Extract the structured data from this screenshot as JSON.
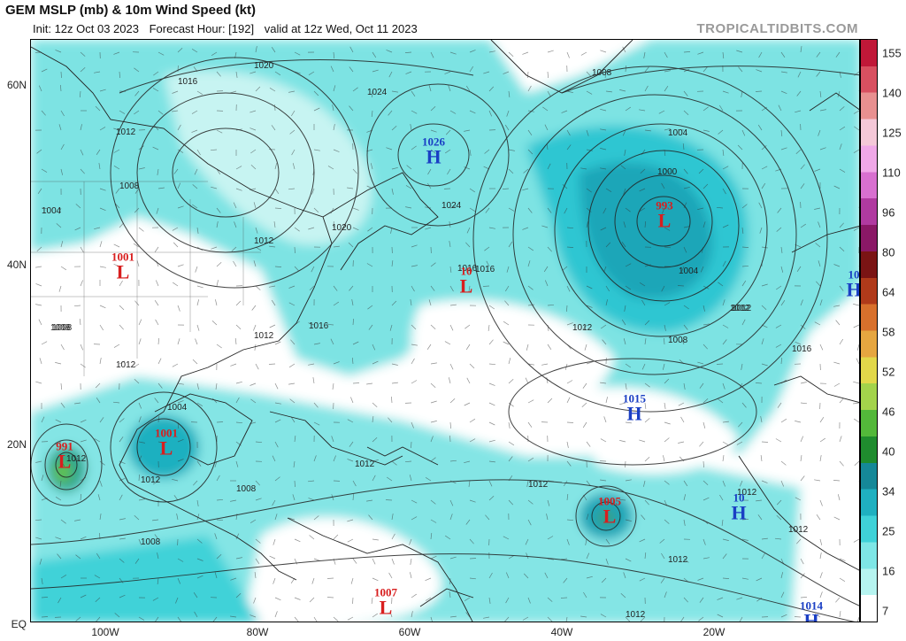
{
  "header": {
    "title": "GEM MSLP (mb) & 10m Wind Speed (kt)",
    "init": "Init: 12z Oct 03 2023",
    "forecast_hour": "Forecast Hour: [192]",
    "valid": "valid at 12z Wed, Oct 11 2023",
    "brand": "TROPICALTIDBITS.COM"
  },
  "axes": {
    "lat_labels": [
      "60N",
      "40N",
      "20N",
      "EQ"
    ],
    "lon_labels": [
      "100W",
      "80W",
      "60W",
      "40W",
      "20W"
    ]
  },
  "colorbar": {
    "labels": [
      "155",
      "140",
      "125",
      "110",
      "96",
      "80",
      "64",
      "58",
      "52",
      "46",
      "40",
      "34",
      "25",
      "16",
      "7"
    ],
    "colors": [
      "#ffffff",
      "#b6f4f0",
      "#7ee6e6",
      "#3fd2d8",
      "#1fb0c0",
      "#158898",
      "#1f8c2e",
      "#53b83a",
      "#a3d34b",
      "#e2d84a",
      "#e6a640",
      "#d8702c",
      "#b03a1a",
      "#7a1414",
      "#8a1866",
      "#b03aa0",
      "#d870d0",
      "#f0a8e8",
      "#f4c8d8",
      "#e89090",
      "#d85060",
      "#c01838"
    ]
  },
  "systems": [
    {
      "kind": "low",
      "pressure": "991",
      "letter": "L"
    },
    {
      "kind": "low",
      "pressure": "1001",
      "letter": "L"
    },
    {
      "kind": "low",
      "pressure": "1001",
      "letter": "L"
    },
    {
      "kind": "low",
      "pressure": "1007",
      "letter": "L"
    },
    {
      "kind": "low",
      "pressure": "10",
      "letter": "L"
    },
    {
      "kind": "low",
      "pressure": "993",
      "letter": "L"
    },
    {
      "kind": "low",
      "pressure": "1005",
      "letter": "L"
    },
    {
      "kind": "high",
      "pressure": "1026",
      "letter": "H"
    },
    {
      "kind": "high",
      "pressure": "1015",
      "letter": "H"
    },
    {
      "kind": "high",
      "pressure": "10",
      "letter": "H"
    },
    {
      "kind": "high",
      "pressure": "1014",
      "letter": "H"
    },
    {
      "kind": "high",
      "pressure": "10",
      "letter": "H"
    }
  ],
  "isobar_labels": [
    "1020",
    "1016",
    "1012",
    "1008",
    "1004",
    "1024",
    "1000",
    "1008",
    "1004",
    "1012",
    "1016",
    "1020",
    "1024",
    "1012",
    "1008",
    "1004",
    "1012",
    "1016",
    "1012",
    "1012",
    "1008",
    "1004",
    "1012",
    "1012",
    "1012",
    "1012",
    "1008",
    "1012",
    "1016",
    "1012",
    "1012",
    "1008",
    "1016",
    "1012",
    "1012",
    "1008"
  ]
}
